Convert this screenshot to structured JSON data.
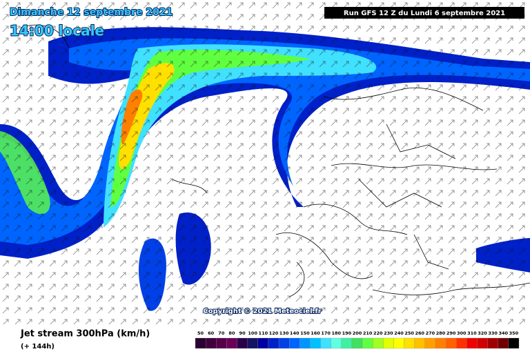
{
  "header": {
    "date": "Dimanche 12 septembre 2021",
    "time": "14:00 locale",
    "run": "Run GFS 12 Z du Lundi 6 septembre 2021"
  },
  "map": {
    "copyright": "Copyright © 2021 Meteociel.fr"
  },
  "footer": {
    "title": "Jet stream 300hPa (km/h)",
    "lead": "(+ 144h)"
  },
  "legend": {
    "values": [
      50,
      60,
      70,
      80,
      90,
      100,
      110,
      120,
      130,
      140,
      150,
      160,
      170,
      180,
      190,
      200,
      210,
      220,
      230,
      240,
      250,
      260,
      270,
      280,
      290,
      300,
      310,
      320,
      330,
      340,
      350
    ],
    "colors": [
      "#2a0030",
      "#40003c",
      "#56004a",
      "#6a0058",
      "#2a004a",
      "#141464",
      "#0000a0",
      "#0020c8",
      "#0040e6",
      "#0064ff",
      "#0096ff",
      "#00c0ff",
      "#40e0ff",
      "#60ffe0",
      "#40f0a0",
      "#40e060",
      "#60ff40",
      "#a0ff20",
      "#e0ff00",
      "#ffff00",
      "#ffe000",
      "#ffc000",
      "#ffa000",
      "#ff8000",
      "#ff6000",
      "#ff3000",
      "#f00000",
      "#d00000",
      "#a00000",
      "#700000",
      "#000000"
    ]
  }
}
